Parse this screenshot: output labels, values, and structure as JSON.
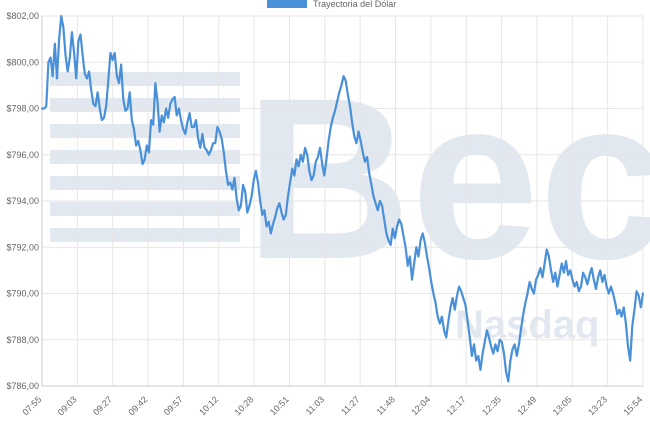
{
  "chart_data": {
    "type": "line",
    "legend": {
      "label": "Trayectoria del Dólar",
      "position": "top-center"
    },
    "series_color": "#4a90d9",
    "grid": true,
    "ylim": [
      786,
      802
    ],
    "y_ticks": [
      "$786,00",
      "$788,00",
      "$790,00",
      "$792,00",
      "$794,00",
      "$796,00",
      "$798,00",
      "$800,00",
      "$802,00"
    ],
    "x_ticks": [
      "07:55",
      "09:03",
      "09:27",
      "09:42",
      "09:57",
      "10:12",
      "10:28",
      "10:51",
      "11:03",
      "11:27",
      "11:48",
      "12:04",
      "12:17",
      "12:35",
      "12:49",
      "13:05",
      "13:23",
      "15:54"
    ],
    "series": [
      {
        "values": [
          798.0,
          798.0,
          798.1,
          800.0,
          800.2,
          799.4,
          800.8,
          799.3,
          801.0,
          802.0,
          801.5,
          800.3,
          799.6,
          800.2,
          801.3,
          800.4,
          799.3,
          800.9,
          801.2,
          800.3,
          799.5,
          799.3,
          799.6,
          798.8,
          798.2,
          798.1,
          798.7,
          798.0,
          797.5,
          797.6,
          798.1,
          799.2,
          800.4,
          800.1,
          800.4,
          799.4,
          799.1,
          799.9,
          798.4,
          797.9,
          798.0,
          798.7,
          797.5,
          797.1,
          796.4,
          796.6,
          796.2,
          795.6,
          795.8,
          796.4,
          796.1,
          797.5,
          797.3,
          799.1,
          798.3,
          797.0,
          797.7,
          797.4,
          798.0,
          797.6,
          798.2,
          798.4,
          798.5,
          797.7,
          798.0,
          797.5,
          797.1,
          796.9,
          797.4,
          797.8,
          797.2,
          797.2,
          797.5,
          796.7,
          796.3,
          796.9,
          796.3,
          796.2,
          796.0,
          796.2,
          796.5,
          796.5,
          797.2,
          797.0,
          796.7,
          796.1,
          795.3,
          794.7,
          794.8,
          794.5,
          795.0,
          794.1,
          793.6,
          793.8,
          794.7,
          794.4,
          793.5,
          793.8,
          794.2,
          794.9,
          795.3,
          794.8,
          794.0,
          793.4,
          793.6,
          792.9,
          793.1,
          792.6,
          793.0,
          793.3,
          793.7,
          793.9,
          793.5,
          793.2,
          793.4,
          794.2,
          794.8,
          795.4,
          795.1,
          795.8,
          795.5,
          796.0,
          795.7,
          796.3,
          796.0,
          795.3,
          794.9,
          795.1,
          795.7,
          795.9,
          796.3,
          795.6,
          795.1,
          795.8,
          796.6,
          797.2,
          797.6,
          797.9,
          798.3,
          798.7,
          799.0,
          799.4,
          799.2,
          798.6,
          798.1,
          797.4,
          796.8,
          796.5,
          797.0,
          796.6,
          796.1,
          795.7,
          795.9,
          795.2,
          794.7,
          794.2,
          793.9,
          793.6,
          794.0,
          793.8,
          793.2,
          792.6,
          792.3,
          792.1,
          792.8,
          792.4,
          792.9,
          793.2,
          793.0,
          792.5,
          792.0,
          791.2,
          791.6,
          790.6,
          791.3,
          792.0,
          791.6,
          792.3,
          792.6,
          792.2,
          791.6,
          791.1,
          790.5,
          790.0,
          789.6,
          789.0,
          788.7,
          789.0,
          788.4,
          788.1,
          788.8,
          789.4,
          789.8,
          789.3,
          789.9,
          790.3,
          790.1,
          789.8,
          789.5,
          788.8,
          788.1,
          787.3,
          787.8,
          787.1,
          787.3,
          786.7,
          787.4,
          787.9,
          788.4,
          788.1,
          787.7,
          787.4,
          787.8,
          787.5,
          788.0,
          787.9,
          787.4,
          786.6,
          786.2,
          787.1,
          787.6,
          787.8,
          787.3,
          787.8,
          788.5,
          789.1,
          789.6,
          790.0,
          790.5,
          790.2,
          790.0,
          790.6,
          790.8,
          791.1,
          790.7,
          791.3,
          791.9,
          791.6,
          791.0,
          790.5,
          790.9,
          790.3,
          790.8,
          791.3,
          790.9,
          791.4,
          790.8,
          791.0,
          790.6,
          790.3,
          790.5,
          790.1,
          790.3,
          790.9,
          790.7,
          790.4,
          790.8,
          791.1,
          790.6,
          790.2,
          790.7,
          791.0,
          790.5,
          790.8,
          790.3,
          790.0,
          790.3,
          790.0,
          789.6,
          789.1,
          789.3,
          789.0,
          789.4,
          788.7,
          787.7,
          787.1,
          788.6,
          789.3,
          790.1,
          789.9,
          789.4,
          790.0
        ]
      }
    ]
  },
  "watermark": {
    "logo": "Bec",
    "sub": "Nasdaq"
  }
}
